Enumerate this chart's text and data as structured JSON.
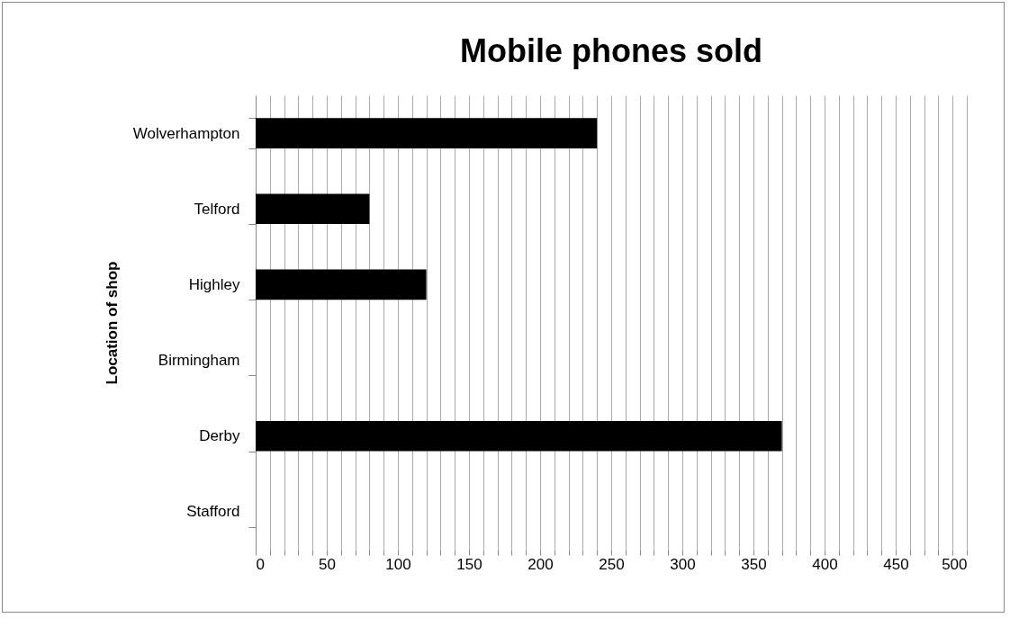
{
  "chart_data": {
    "type": "bar",
    "orientation": "horizontal",
    "title": "Mobile phones sold",
    "ylabel": "Location of shop",
    "categories": [
      "Wolverhampton",
      "Telford",
      "Highley",
      "Birmingham",
      "Derby",
      "Stafford"
    ],
    "values": [
      240,
      80,
      120,
      0,
      370,
      0
    ],
    "color": "#000000",
    "xlim": [
      0,
      500
    ],
    "xticks": [
      0,
      {
        "value": 10,
        "label": null
      },
      {
        "value": 20,
        "label": null
      },
      {
        "value": 30,
        "label": null
      },
      {
        "value": 40,
        "label": null
      },
      50,
      {
        "value": 60,
        "label": null
      },
      {
        "value": 70,
        "label": null
      },
      {
        "value": 80,
        "label": null
      },
      {
        "value": 90,
        "label": null
      },
      100,
      {
        "value": 110,
        "label": null
      },
      {
        "value": 120,
        "label": null
      },
      {
        "value": 130,
        "label": null
      },
      {
        "value": 140,
        "label": null
      },
      150,
      {
        "value": 160,
        "label": null
      },
      {
        "value": 170,
        "label": null
      },
      {
        "value": 180,
        "label": null
      },
      {
        "value": 190,
        "label": null
      },
      200,
      {
        "value": 210,
        "label": null
      },
      {
        "value": 220,
        "label": null
      },
      {
        "value": 230,
        "label": null
      },
      {
        "value": 240,
        "label": null
      },
      250,
      {
        "value": 260,
        "label": null
      },
      {
        "value": 270,
        "label": null
      },
      {
        "value": 280,
        "label": null
      },
      {
        "value": 290,
        "label": null
      },
      300,
      {
        "value": 310,
        "label": null
      },
      {
        "value": 320,
        "label": null
      },
      {
        "value": 330,
        "label": null
      },
      {
        "value": 340,
        "label": null
      },
      350,
      {
        "value": 360,
        "label": null
      },
      {
        "value": 370,
        "label": null
      },
      {
        "value": 380,
        "label": null
      },
      {
        "value": 390,
        "label": null
      },
      400,
      {
        "value": 410,
        "label": null
      },
      {
        "value": 420,
        "label": null
      },
      {
        "value": 430,
        "label": null
      },
      {
        "value": 440,
        "label": null
      },
      450,
      {
        "value": 460,
        "label": null
      },
      {
        "value": 470,
        "label": null
      },
      {
        "value": 480,
        "label": null
      },
      {
        "value": 490,
        "label": null
      },
      500
    ],
    "grid": "x"
  }
}
